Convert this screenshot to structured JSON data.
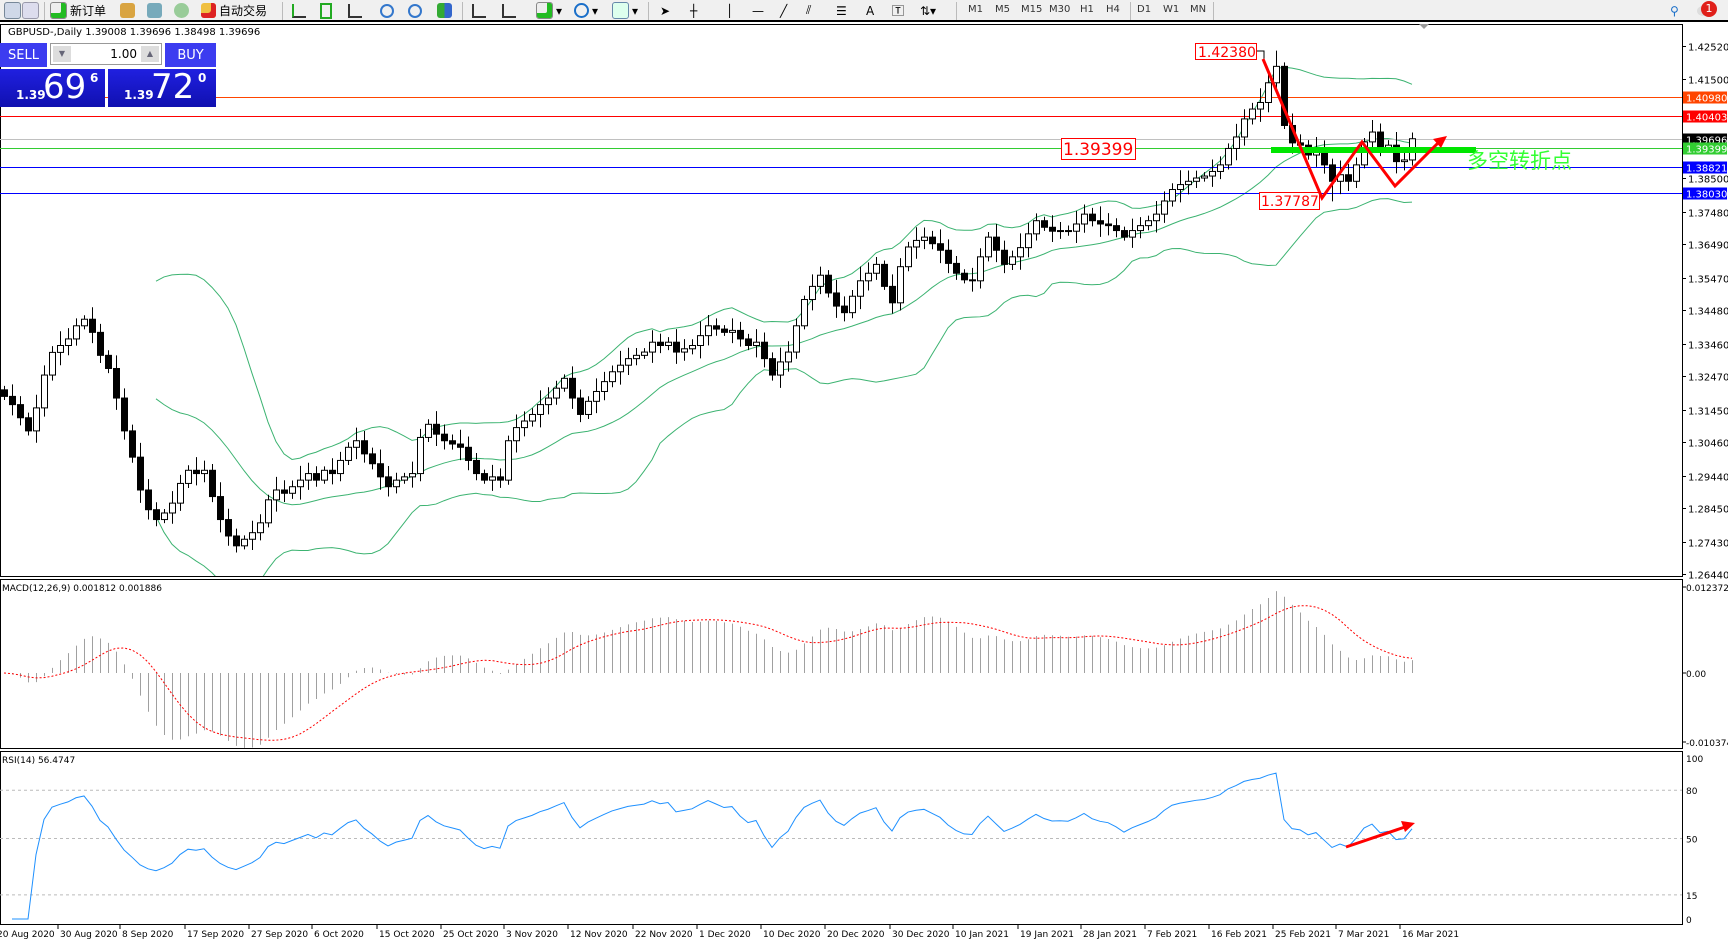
{
  "toolbar": {
    "new_order": "新订单",
    "auto_trading": "自动交易",
    "timeframes": [
      "M1",
      "M5",
      "M15",
      "M30",
      "H1",
      "H4",
      "D1",
      "W1",
      "MN"
    ],
    "notifications": "1"
  },
  "chart_header": "GBPUSD-,Daily  1.39008 1.39696 1.38498 1.39696",
  "trade_panel": {
    "sell": "SELL",
    "buy": "BUY",
    "lot": "1.00",
    "sell_small": "1.39",
    "sell_big": "69",
    "sell_sup": "6",
    "buy_small": "1.39",
    "buy_big": "72",
    "buy_sup": "0"
  },
  "annotations": {
    "high_label": "1.42380",
    "low_label": "1.37787",
    "pivot_label": "1.39399",
    "pivot_text": "多空转折点"
  },
  "chart_data": [
    {
      "type": "candlestick",
      "symbol": "GBPUSD-",
      "timeframe": "Daily",
      "price_ticks": [
        "1.42520",
        "1.41500",
        "1.38500",
        "1.37480",
        "1.36490",
        "1.35470",
        "1.34480",
        "1.33460",
        "1.32470",
        "1.31450",
        "1.30460",
        "1.29440",
        "1.28450",
        "1.27430",
        "1.26440"
      ],
      "ylim": [
        1.2644,
        1.4252
      ],
      "levels": [
        {
          "value": "1.40980",
          "color": "#ff4500"
        },
        {
          "value": "1.40403",
          "color": "#ff0000"
        },
        {
          "value": "1.39696",
          "color": "#000000",
          "line": "#c0c0c0"
        },
        {
          "value": "1.39399",
          "color": "#32cd32"
        },
        {
          "value": "1.38821",
          "color": "#0000ff"
        },
        {
          "value": "1.38030",
          "color": "#0000ff"
        }
      ],
      "overlay": "Bollinger Bands",
      "band_color": "#3cb371",
      "close": [
        1.3185,
        1.316,
        1.312,
        1.308,
        1.315,
        1.325,
        1.3319,
        1.334,
        1.336,
        1.34,
        1.342,
        1.338,
        1.331,
        1.327,
        1.318,
        1.308,
        1.3,
        1.29,
        1.284,
        1.281,
        1.283,
        1.286,
        1.292,
        1.296,
        1.295,
        1.296,
        1.288,
        1.281,
        1.276,
        1.273,
        1.275,
        1.277,
        1.28,
        1.287,
        1.29,
        1.289,
        1.291,
        1.293,
        1.295,
        1.293,
        1.296,
        1.295,
        1.299,
        1.303,
        1.305,
        1.301,
        1.298,
        1.294,
        1.291,
        1.293,
        1.294,
        1.295,
        1.306,
        1.31,
        1.307,
        1.305,
        1.304,
        1.303,
        1.299,
        1.295,
        1.293,
        1.294,
        1.293,
        1.305,
        1.309,
        1.311,
        1.313,
        1.316,
        1.318,
        1.321,
        1.324,
        1.318,
        1.313,
        1.317,
        1.32,
        1.323,
        1.326,
        1.328,
        1.33,
        1.331,
        1.332,
        1.335,
        1.334,
        1.335,
        1.332,
        1.333,
        1.334,
        1.337,
        1.34,
        1.339,
        1.338,
        1.3386,
        1.336,
        1.334,
        1.335,
        1.33,
        1.325,
        1.329,
        1.332,
        1.34,
        1.348,
        1.352,
        1.3554,
        1.35,
        1.346,
        1.344,
        1.349,
        1.3537,
        1.356,
        1.3587,
        1.352,
        1.347,
        1.358,
        1.364,
        1.366,
        1.367,
        1.365,
        1.363,
        1.359,
        1.356,
        1.354,
        1.3537,
        1.361,
        1.367,
        1.363,
        1.3587,
        1.361,
        1.3638,
        1.368,
        1.372,
        1.37,
        1.3688,
        1.369,
        1.3688,
        1.371,
        1.374,
        1.372,
        1.371,
        1.3705,
        1.369,
        1.367,
        1.369,
        1.3705,
        1.372,
        1.374,
        1.378,
        1.3815,
        1.383,
        1.384,
        1.385,
        1.3856,
        1.387,
        1.389,
        1.394,
        1.3975,
        1.403,
        1.406,
        1.408,
        1.414,
        1.419,
        1.401,
        1.3957,
        1.395,
        1.392,
        1.3935,
        1.389,
        1.384,
        1.386,
        1.384,
        1.389,
        1.396,
        1.399,
        1.394,
        1.395,
        1.39,
        1.3905,
        1.39696
      ]
    },
    {
      "type": "bar",
      "title": "MACD(12,26,9) 0.001812 0.001886",
      "ticks": [
        "0.012372",
        "0.00",
        "-0.010374"
      ],
      "ylim": [
        -0.010374,
        0.012372
      ],
      "hist_color": "#a0a0a0",
      "signal_color": "#ff0000"
    },
    {
      "type": "line",
      "title": "RSI(14) 56.4747",
      "ticks": [
        "100",
        "80",
        "50",
        "15",
        "0"
      ],
      "ylim": [
        0,
        100
      ],
      "levels": [
        80,
        50,
        15
      ],
      "color": "#1e90ff"
    }
  ],
  "x_ticks": [
    "20 Aug 2020",
    "30 Aug 2020",
    "8 Sep 2020",
    "17 Sep 2020",
    "27 Sep 2020",
    "6 Oct 2020",
    "15 Oct 2020",
    "25 Oct 2020",
    "3 Nov 2020",
    "12 Nov 2020",
    "22 Nov 2020",
    "1 Dec 2020",
    "10 Dec 2020",
    "20 Dec 2020",
    "30 Dec 2020",
    "10 Jan 2021",
    "19 Jan 2021",
    "28 Jan 2021",
    "7 Feb 2021",
    "16 Feb 2021",
    "25 Feb 2021",
    "7 Mar 2021",
    "16 Mar 2021"
  ]
}
